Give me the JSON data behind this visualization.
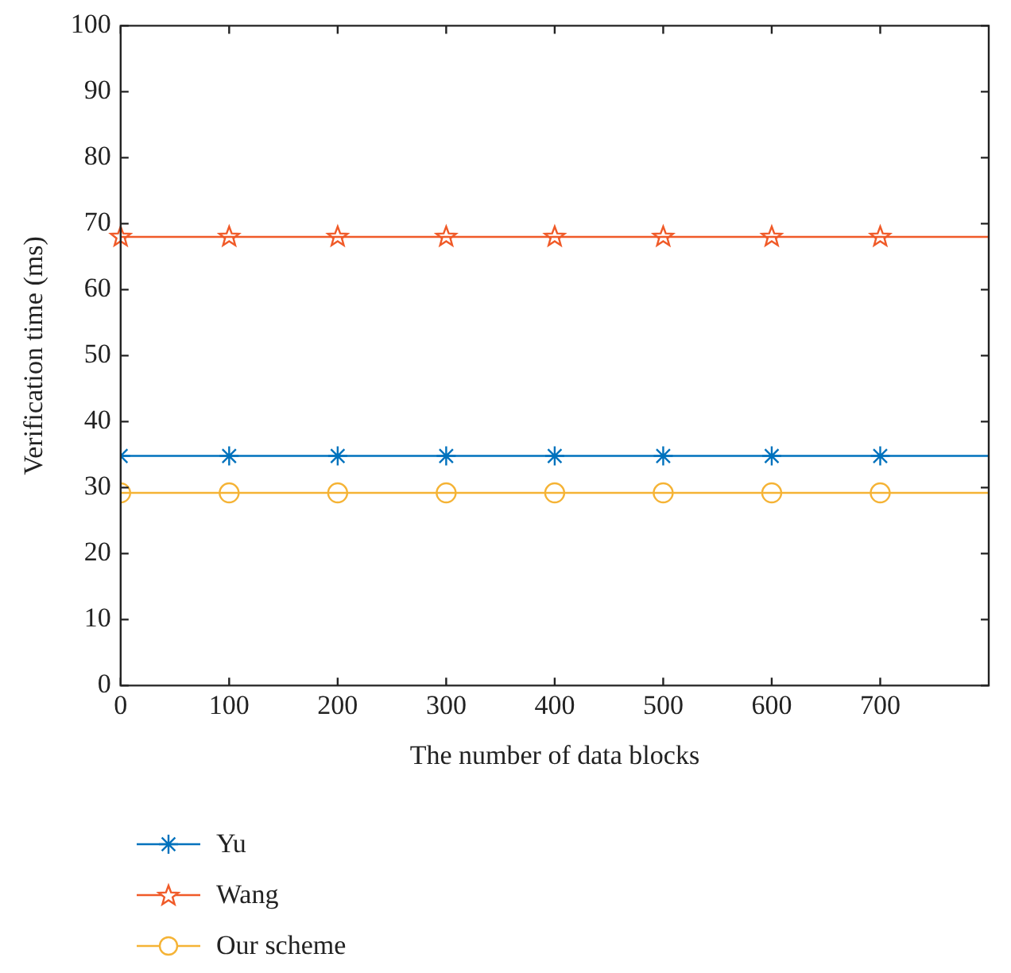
{
  "chart_data": {
    "type": "line",
    "xlabel": "The number of data blocks",
    "ylabel": "Verification time (ms)",
    "x": [
      0,
      100,
      200,
      300,
      400,
      500,
      600,
      700,
      800
    ],
    "series": [
      {
        "name": "Yu",
        "color": "#0072bd",
        "marker": "cross",
        "values": [
          34.8,
          34.8,
          34.8,
          34.8,
          34.8,
          34.8,
          34.8,
          34.8,
          34.8
        ]
      },
      {
        "name": "Wang",
        "color": "#f05a28",
        "marker": "star",
        "values": [
          68,
          68,
          68,
          68,
          68,
          68,
          68,
          68,
          68
        ]
      },
      {
        "name": "Our scheme",
        "color": "#f5b335",
        "marker": "circle",
        "values": [
          29.2,
          29.2,
          29.2,
          29.2,
          29.2,
          29.2,
          29.2,
          29.2,
          29.2
        ]
      }
    ],
    "xlim": [
      0,
      800
    ],
    "xticks": [
      0,
      100,
      200,
      300,
      400,
      500,
      600,
      700
    ],
    "ylim": [
      0,
      100
    ],
    "yticks": [
      0,
      10,
      20,
      30,
      40,
      50,
      60,
      70,
      80,
      90,
      100
    ],
    "grid": false,
    "legend": "bottom left",
    "line_style": "solid"
  }
}
